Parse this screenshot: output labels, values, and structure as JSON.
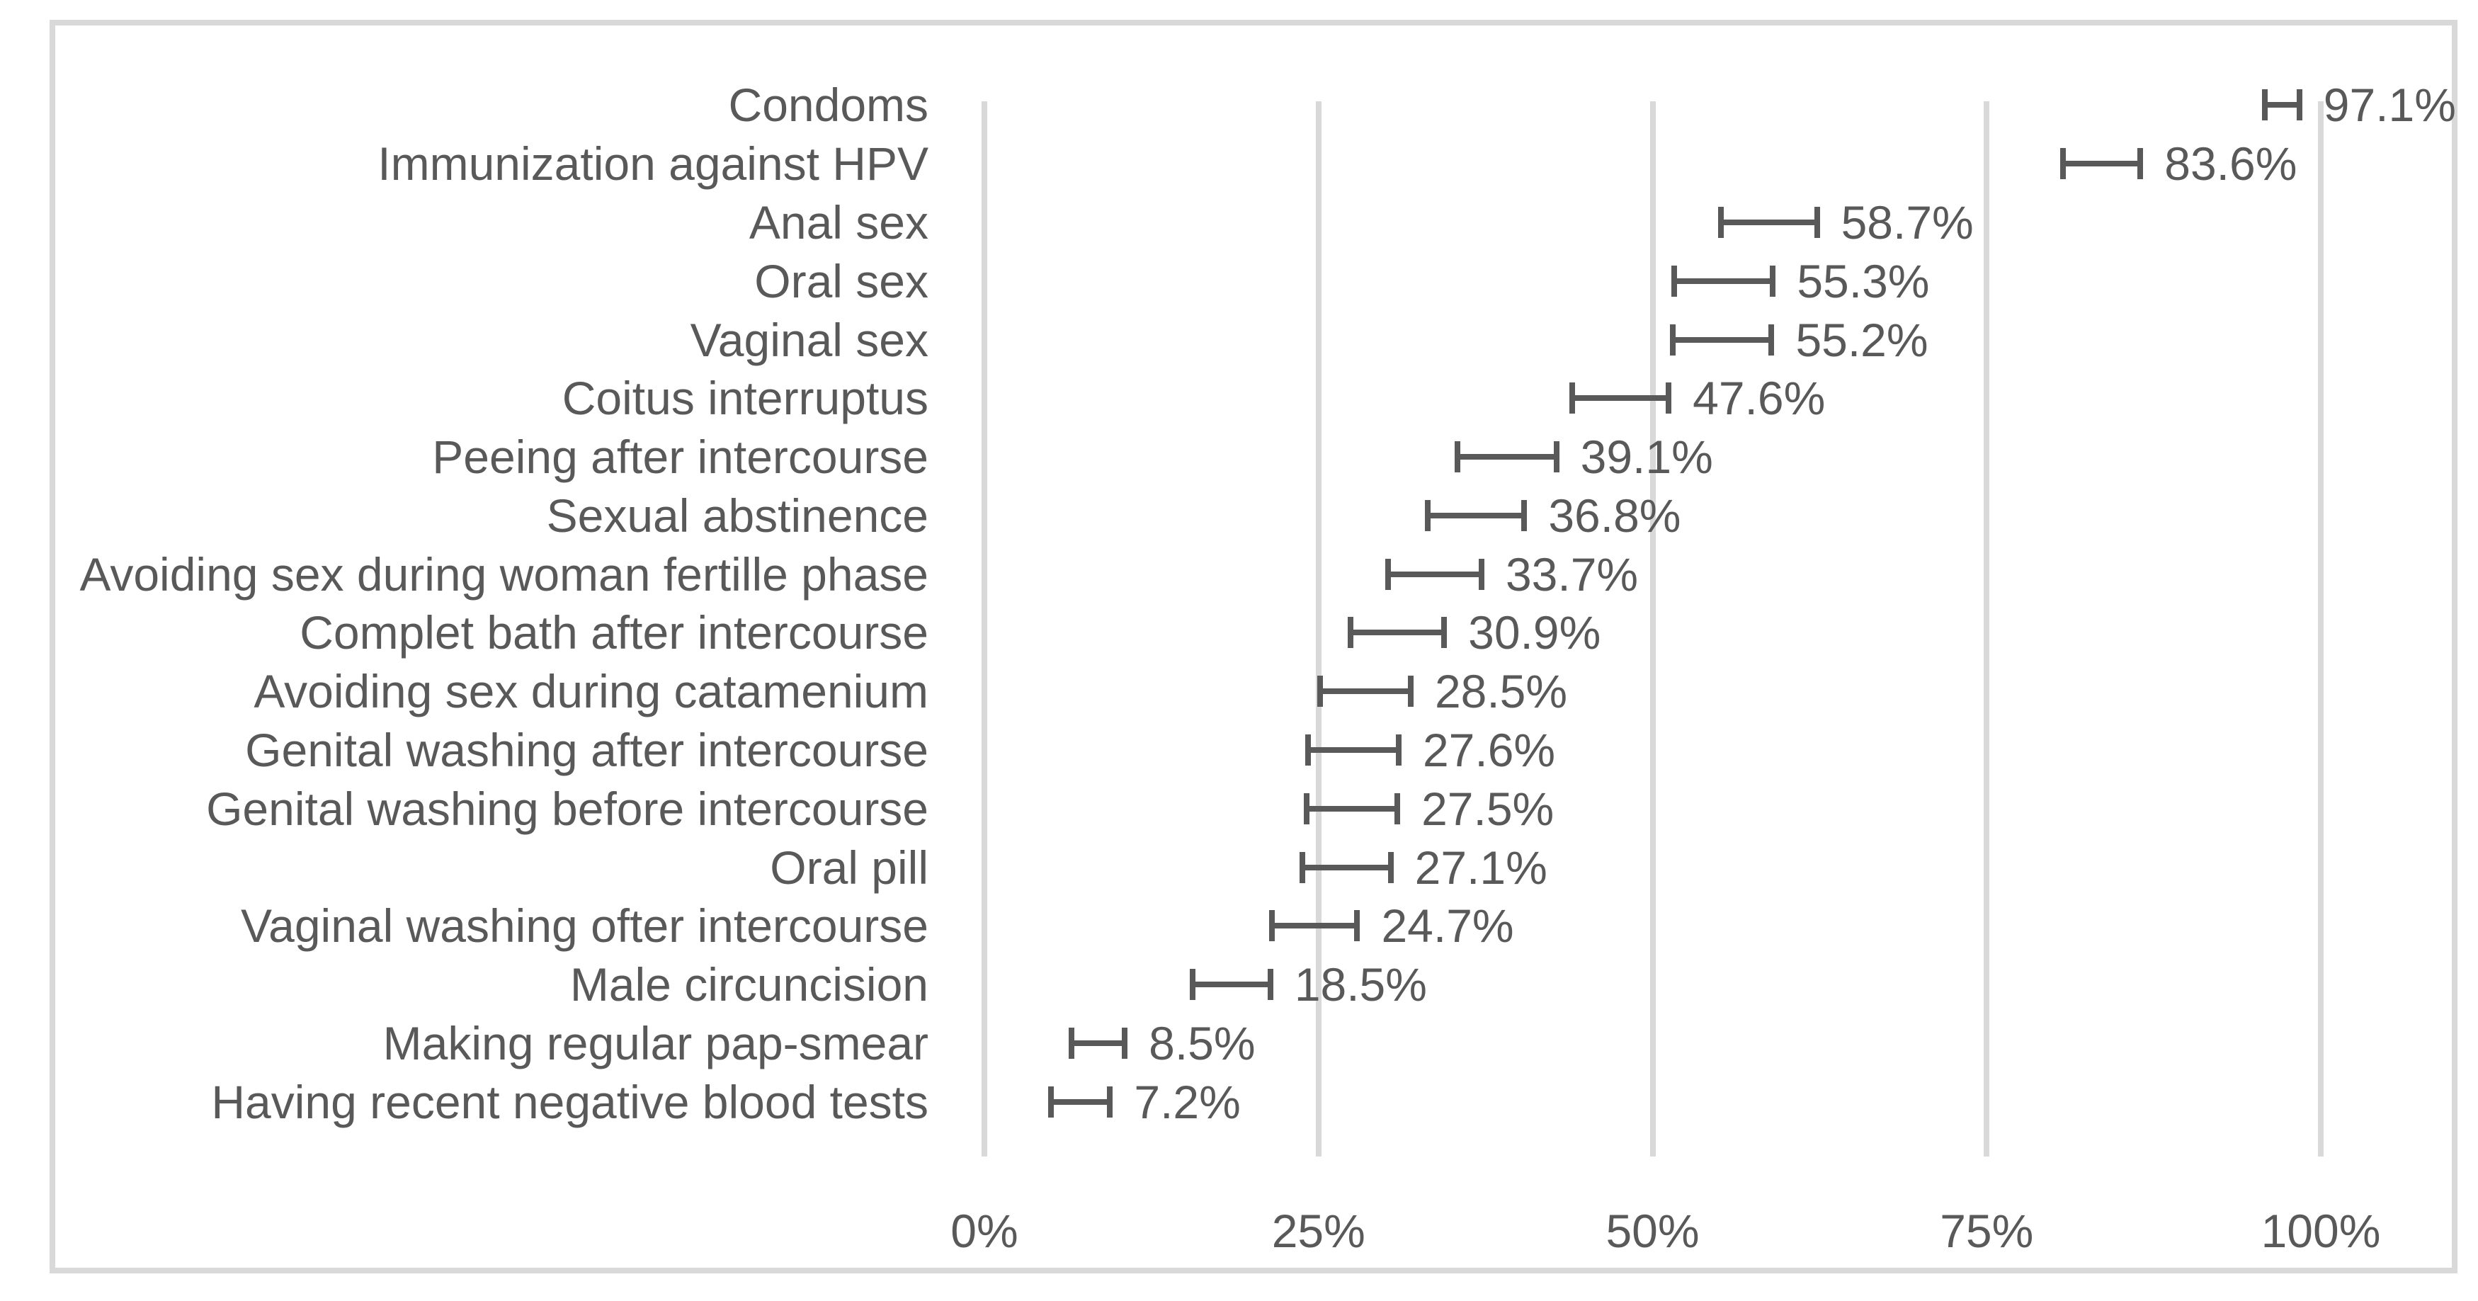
{
  "chart_data": {
    "type": "scatter",
    "subtype": "horizontal-error-bar",
    "title": "",
    "xlabel": "",
    "ylabel": "",
    "categories": [
      "Condoms",
      "Immunization against HPV",
      "Anal sex",
      "Oral sex",
      "Vaginal sex",
      "Coitus interruptus",
      "Peeing after intercourse",
      "Sexual abstinence",
      "Avoiding sex during woman fertille phase",
      "Complet bath after intercourse",
      "Avoiding sex during catamenium",
      "Genital washing after intercourse",
      "Genital washing before intercourse",
      "Oral pill",
      "Vaginal washing ofter intercourse",
      "Male circuncision",
      "Making regular pap-smear",
      "Having recent negative blood tests"
    ],
    "values": [
      97.1,
      83.6,
      58.7,
      55.3,
      55.2,
      47.6,
      39.1,
      36.8,
      33.7,
      30.9,
      28.5,
      27.6,
      27.5,
      27.1,
      24.7,
      18.5,
      8.5,
      7.2
    ],
    "value_labels": [
      "97.1%",
      "83.6%",
      "58.7%",
      "55.3%",
      "55.2%",
      "47.6%",
      "39.1%",
      "36.8%",
      "33.7%",
      "30.9%",
      "28.5%",
      "27.6%",
      "27.5%",
      "27.1%",
      "24.7%",
      "18.5%",
      "8.5%",
      "7.2%"
    ],
    "ci_low": [
      95.8,
      80.7,
      55.1,
      51.6,
      51.5,
      44.0,
      35.4,
      33.2,
      30.2,
      27.4,
      25.1,
      24.2,
      24.1,
      23.8,
      21.5,
      15.6,
      6.5,
      5.0
    ],
    "ci_high": [
      98.4,
      86.5,
      62.3,
      59.0,
      58.9,
      51.2,
      42.8,
      40.4,
      37.2,
      34.4,
      31.9,
      31.0,
      30.9,
      30.4,
      27.9,
      21.4,
      10.5,
      9.4
    ],
    "x_ticks": [
      "0%",
      "25%",
      "50%",
      "75%",
      "100%"
    ],
    "x_tick_values": [
      0,
      25,
      50,
      75,
      100
    ],
    "xlim": [
      0,
      100
    ],
    "grid": "vertical",
    "legend": false
  },
  "style": {
    "text_color": "#595959",
    "error_bar_color": "#595959",
    "gridline_color": "#d9d9d9",
    "border_color": "#d9d9d9",
    "background_color": "#ffffff"
  }
}
